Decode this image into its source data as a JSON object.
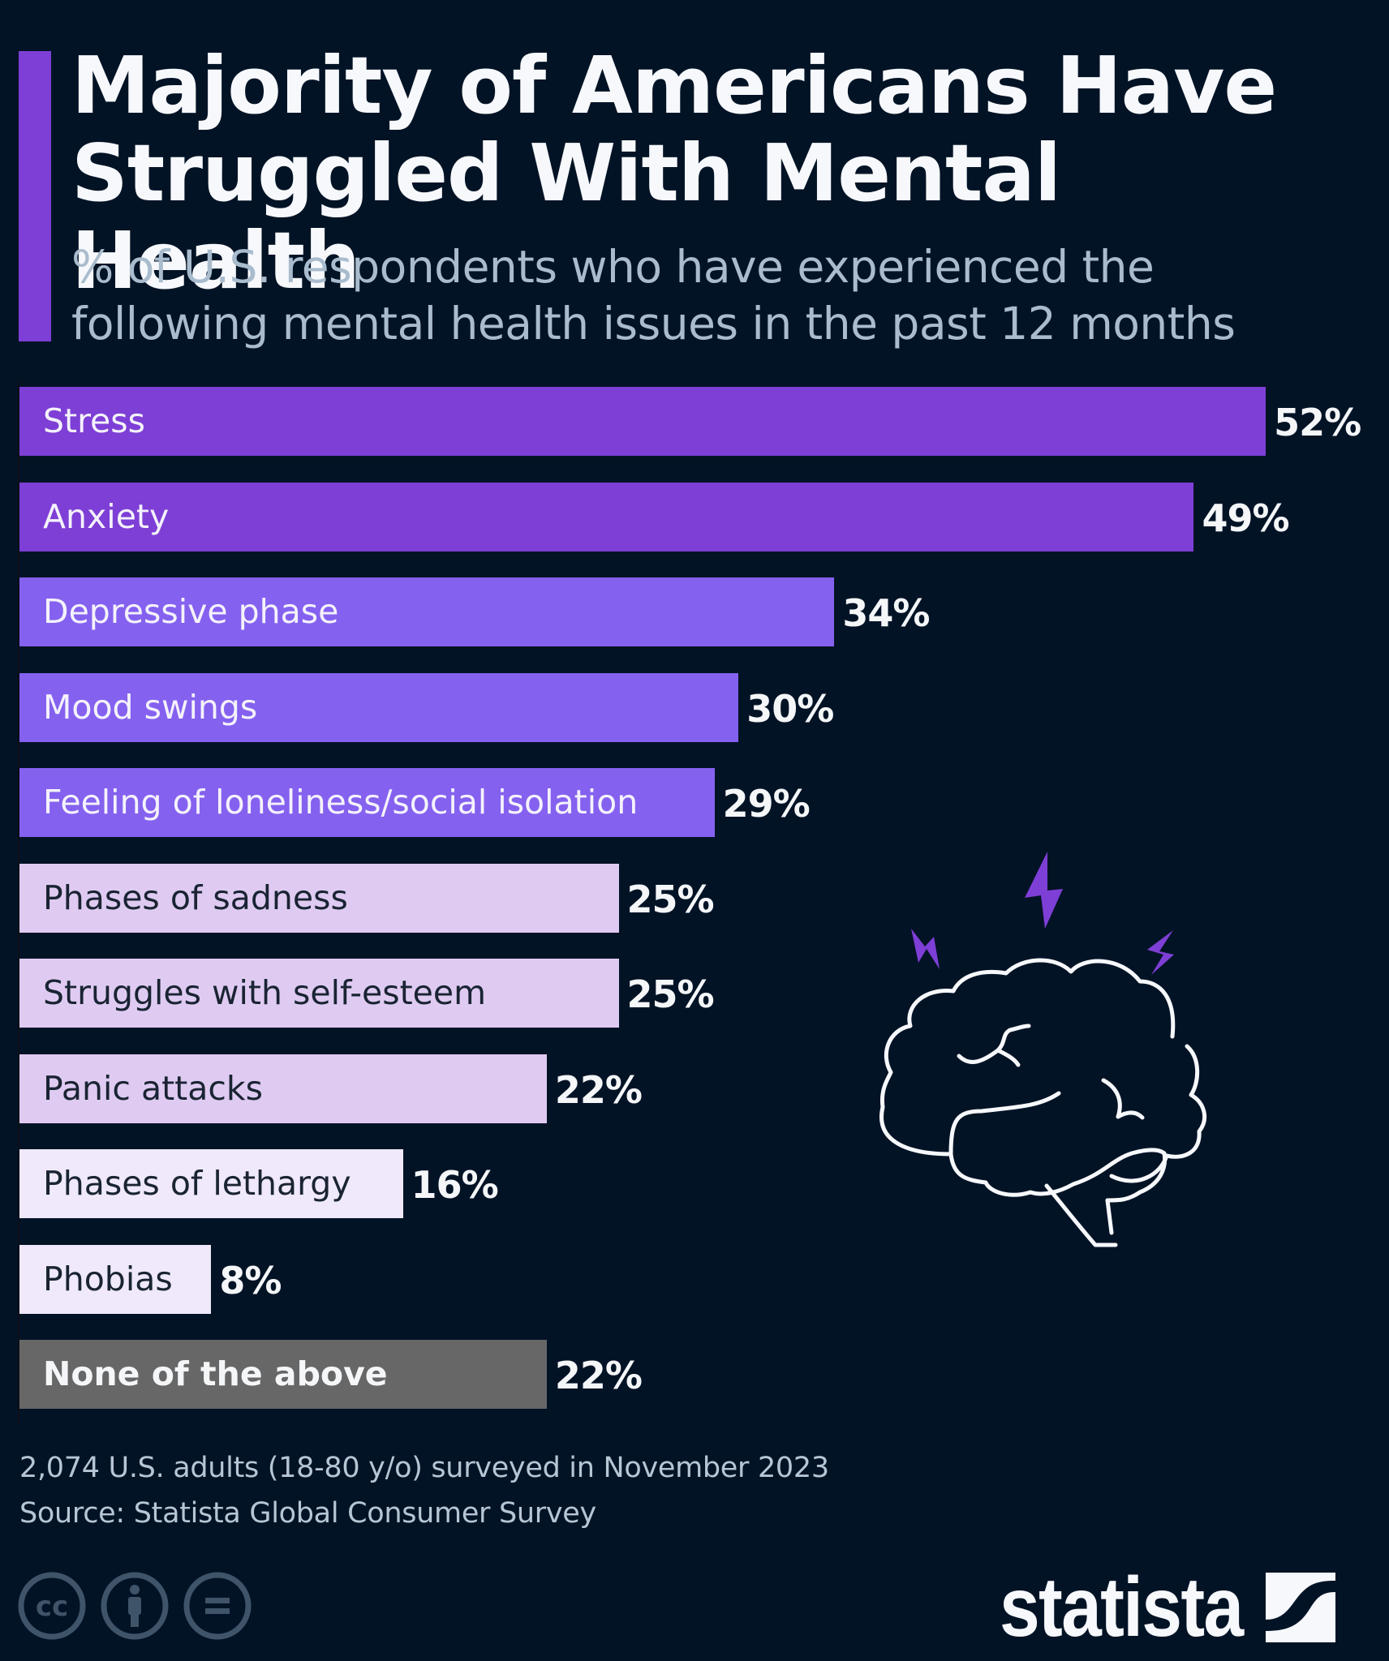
{
  "header": {
    "title": "Majority of Americans Have Struggled With Mental Health",
    "subtitle": "% of U.S. respondents who have experienced the following mental health issues in the past 12 months"
  },
  "colors": {
    "background": "#031326",
    "accent": "#7e3fd6",
    "dark_purple": "#7e3fd6",
    "mid_purple": "#8561ef",
    "lavender": "#dfcbf2",
    "pale_lavender": "#efe9fb",
    "gray": "#676767",
    "value_text": "#f4f6f8"
  },
  "chart_data": {
    "type": "bar",
    "orientation": "horizontal",
    "title": "Majority of Americans Have Struggled With Mental Health",
    "subtitle": "% of U.S. respondents who have experienced the following mental health issues in the past 12 months",
    "xlabel": "",
    "ylabel": "",
    "unit": "%",
    "categories": [
      "Stress",
      "Anxiety",
      "Depressive phase",
      "Mood swings",
      "Feeling of loneliness/social isolation",
      "Phases of sadness",
      "Struggles with self-esteem",
      "Panic attacks",
      "Phases of lethargy",
      "Phobias",
      "None of the above"
    ],
    "values": [
      52,
      49,
      34,
      30,
      29,
      25,
      25,
      22,
      16,
      8,
      22
    ],
    "labels": [
      "52%",
      "49%",
      "34%",
      "30%",
      "29%",
      "25%",
      "25%",
      "22%",
      "16%",
      "8%",
      "22%"
    ],
    "bar_colors": [
      "#7e3fd6",
      "#7e3fd6",
      "#8561ef",
      "#8561ef",
      "#8561ef",
      "#dfcbf2",
      "#dfcbf2",
      "#dfcbf2",
      "#efe9fb",
      "#efe9fb",
      "#676767"
    ],
    "label_colors": [
      "#f4f2fb",
      "#f4f2fb",
      "#f4f2fb",
      "#f4f2fb",
      "#f4f2fb",
      "#1a2433",
      "#1a2433",
      "#1a2433",
      "#1a2433",
      "#1a2433",
      "#f4f6f8"
    ],
    "grid": false,
    "legend": null
  },
  "footer": {
    "note": "2,074 U.S. adults (18-80 y/o) surveyed in November 2023",
    "source": "Source: Statista Global Consumer Survey",
    "license_icons": [
      "cc-icon",
      "attribution-icon",
      "no-derivatives-icon"
    ],
    "logo": "statista"
  },
  "illustration": {
    "icon": "brain-with-lightning-icon"
  }
}
